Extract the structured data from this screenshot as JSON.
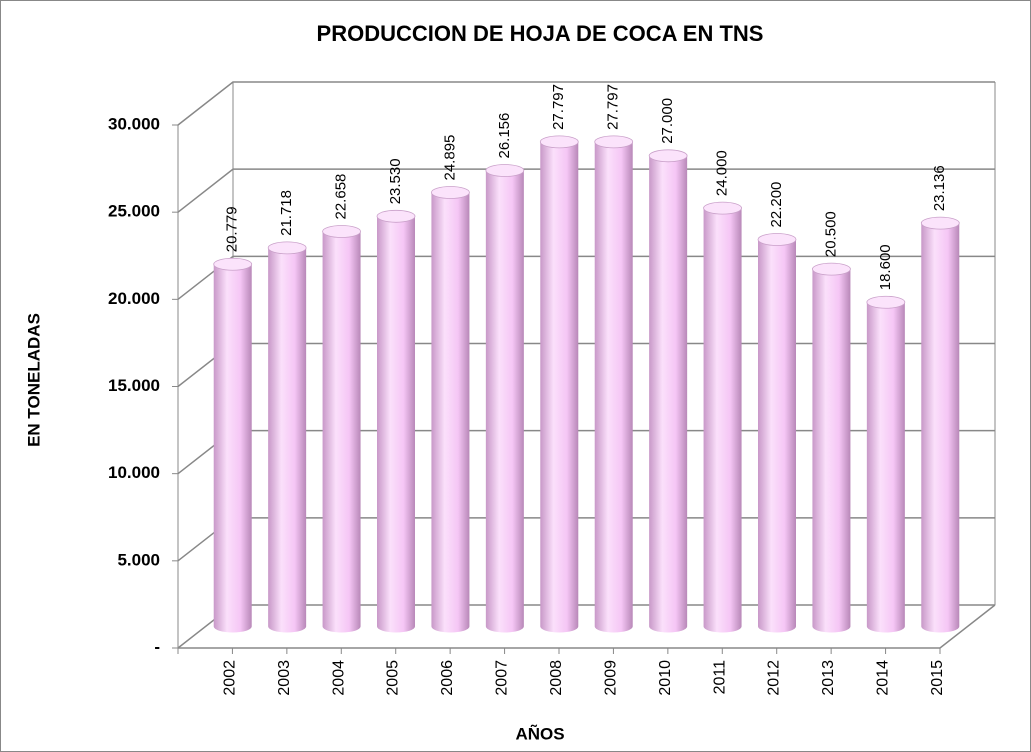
{
  "chart_data": {
    "type": "bar",
    "title": "PRODUCCION DE HOJA DE COCA EN TNS",
    "x_label": "AÑOS",
    "y_label": "EN TONELADAS",
    "categories": [
      "2002",
      "2003",
      "2004",
      "2005",
      "2006",
      "2007",
      "2008",
      "2009",
      "2010",
      "2011",
      "2012",
      "2013",
      "2014",
      "2015"
    ],
    "values": [
      20779,
      21718,
      22658,
      23530,
      24895,
      26156,
      27797,
      27797,
      27000,
      24000,
      22200,
      20500,
      18600,
      23136
    ],
    "value_labels": [
      "20.779",
      "21.718",
      "22.658",
      "23.530",
      "24.895",
      "26.156",
      "27.797",
      "27.797",
      "27.000",
      "24.000",
      "22.200",
      "20.500",
      "18.600",
      "23.136"
    ],
    "color": "#f5c6f5",
    "ylim": [
      0,
      30000
    ],
    "yticks": [
      {
        "value": 0,
        "label": "-"
      },
      {
        "value": 5000,
        "label": "5.000"
      },
      {
        "value": 10000,
        "label": "10.000"
      },
      {
        "value": 15000,
        "label": "15.000"
      },
      {
        "value": 20000,
        "label": "20.000"
      },
      {
        "value": 25000,
        "label": "25.000"
      },
      {
        "value": 30000,
        "label": "30.000"
      }
    ],
    "grid": true
  }
}
